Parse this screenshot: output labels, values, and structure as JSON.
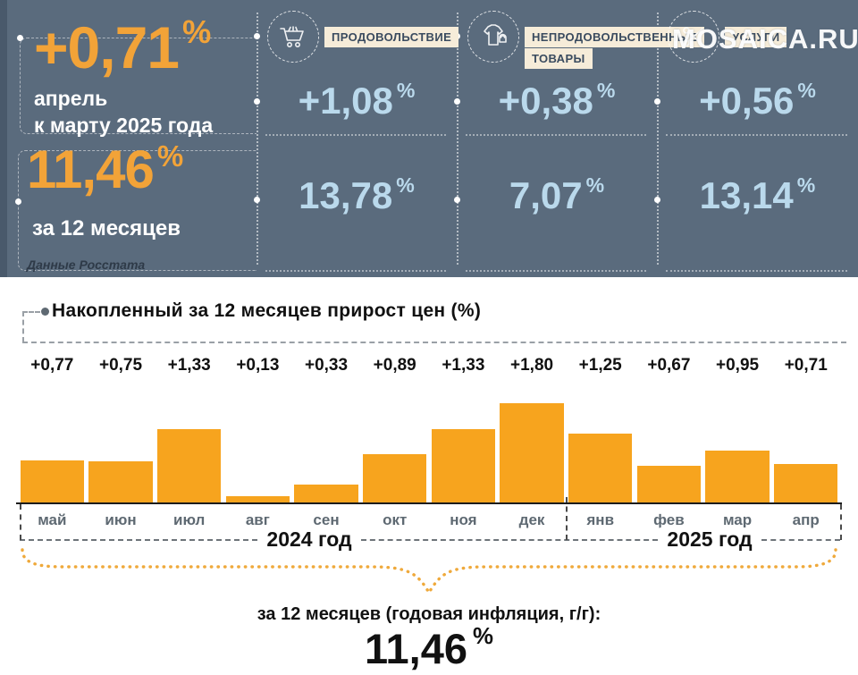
{
  "watermark": "MOSAICA.RU",
  "symbols": {
    "percent": "%"
  },
  "colors": {
    "header_bg": "#5A6B7D",
    "accent_orange": "#F2A338",
    "bar_orange": "#F7A41E",
    "light_blue": "#BAD9EC",
    "badge_cream": "#F6ECD9"
  },
  "header": {
    "period": {
      "value": "+0,71",
      "label_line1": "апрель",
      "label_line2": "к марту 2025 года"
    },
    "annual": {
      "value": "11,46",
      "label": "за 12 месяцев"
    },
    "source": "Данные Росстата",
    "categories": [
      {
        "label": "ПРОДОВОЛЬСТВИЕ",
        "icon": "cart-icon",
        "month_value": "+1,08",
        "year_value": "13,78"
      },
      {
        "label": "НЕПРОДОВОЛЬСТВЕННЫЕ ТОВАРЫ",
        "icon": "clothes-icon",
        "month_value": "+0,38",
        "year_value": "7,07"
      },
      {
        "label": "УСЛУГИ",
        "icon": "scissors-icon",
        "month_value": "+0,56",
        "year_value": "13,14"
      }
    ]
  },
  "chart_data": {
    "type": "bar",
    "title": "Накопленный за 12 месяцев прирост цен (%)",
    "categories": [
      "май",
      "июн",
      "июл",
      "авг",
      "сен",
      "окт",
      "ноя",
      "дек",
      "янв",
      "фев",
      "мар",
      "апр"
    ],
    "values": [
      0.77,
      0.75,
      1.33,
      0.13,
      0.33,
      0.89,
      1.33,
      1.8,
      1.25,
      0.67,
      0.95,
      0.71
    ],
    "value_labels": [
      "+0,77",
      "+0,75",
      "+1,33",
      "+0,13",
      "+0,33",
      "+0,89",
      "+1,33",
      "+1,80",
      "+1,25",
      "+0,67",
      "+0,95",
      "+0,71"
    ],
    "year_groups": [
      {
        "label": "2024 год",
        "months": [
          "май",
          "июн",
          "июл",
          "авг",
          "сен",
          "окт",
          "ноя",
          "дек"
        ]
      },
      {
        "label": "2025 год",
        "months": [
          "янв",
          "фев",
          "мар",
          "апр"
        ]
      }
    ],
    "xlabel": "",
    "ylabel": "",
    "ylim": [
      0,
      1.8
    ],
    "grid": false,
    "legend": false,
    "bar_color": "#F7A41E"
  },
  "footer": {
    "caption": "за 12 месяцев (годовая инфляция, г/г):",
    "value": "11,46"
  }
}
